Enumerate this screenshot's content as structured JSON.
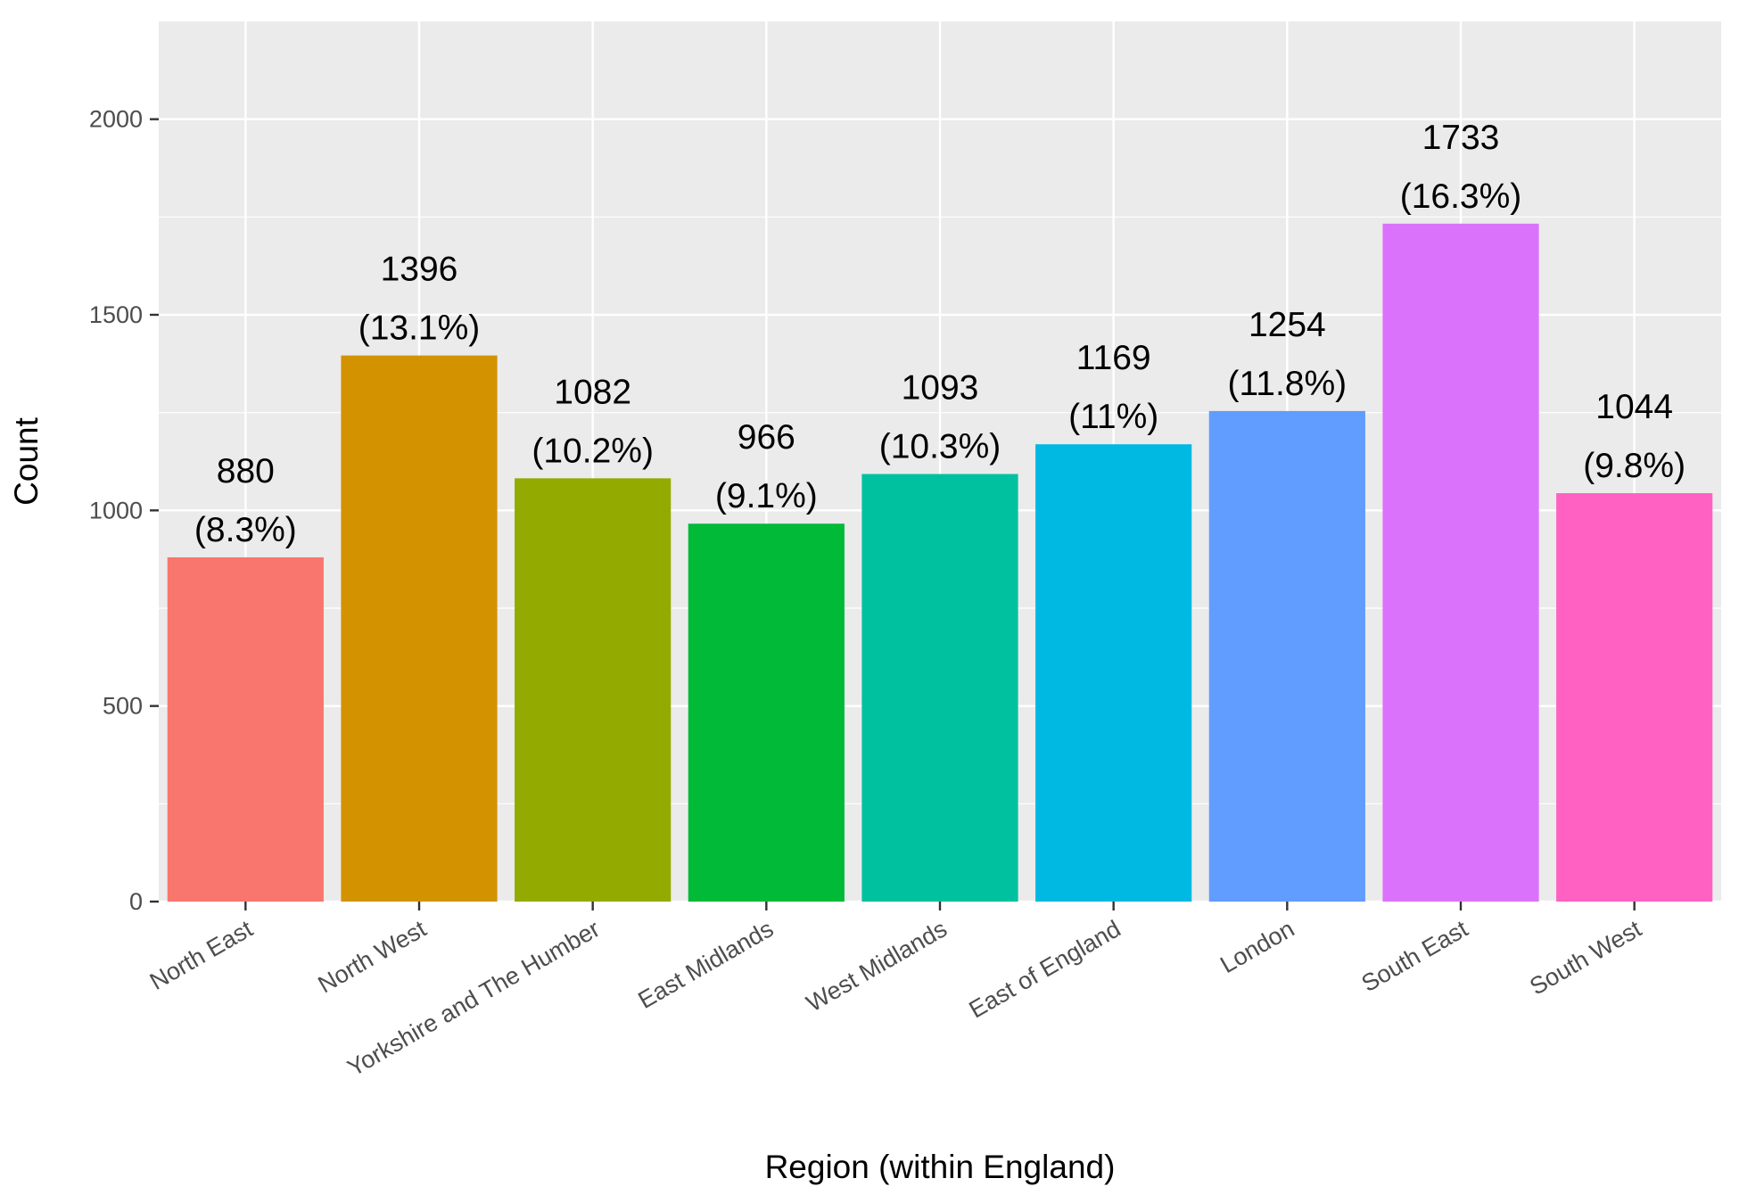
{
  "chart_data": {
    "type": "bar",
    "categories": [
      "North East",
      "North West",
      "Yorkshire and The Humber",
      "East Midlands",
      "West Midlands",
      "East of England",
      "London",
      "South East",
      "South West"
    ],
    "values": [
      880,
      1396,
      1082,
      966,
      1093,
      1169,
      1254,
      1733,
      1044
    ],
    "percent_labels": [
      "(8.3%)",
      "(13.1%)",
      "(10.2%)",
      "(9.1%)",
      "(10.3%)",
      "(11%)",
      "(11.8%)",
      "(16.3%)",
      "(9.8%)"
    ],
    "colors": [
      "#F8766D",
      "#D39200",
      "#93AA00",
      "#00BA38",
      "#00C19F",
      "#00B9E3",
      "#619CFF",
      "#DB72FB",
      "#FF61C3"
    ],
    "xlabel": "Region (within England)",
    "ylabel": "Count",
    "ylim": [
      0,
      2250
    ],
    "y_ticks": [
      0,
      500,
      1000,
      1500,
      2000
    ],
    "grid": true,
    "panel_background": "#EBEBEB",
    "gridline_color": "#FFFFFF"
  }
}
